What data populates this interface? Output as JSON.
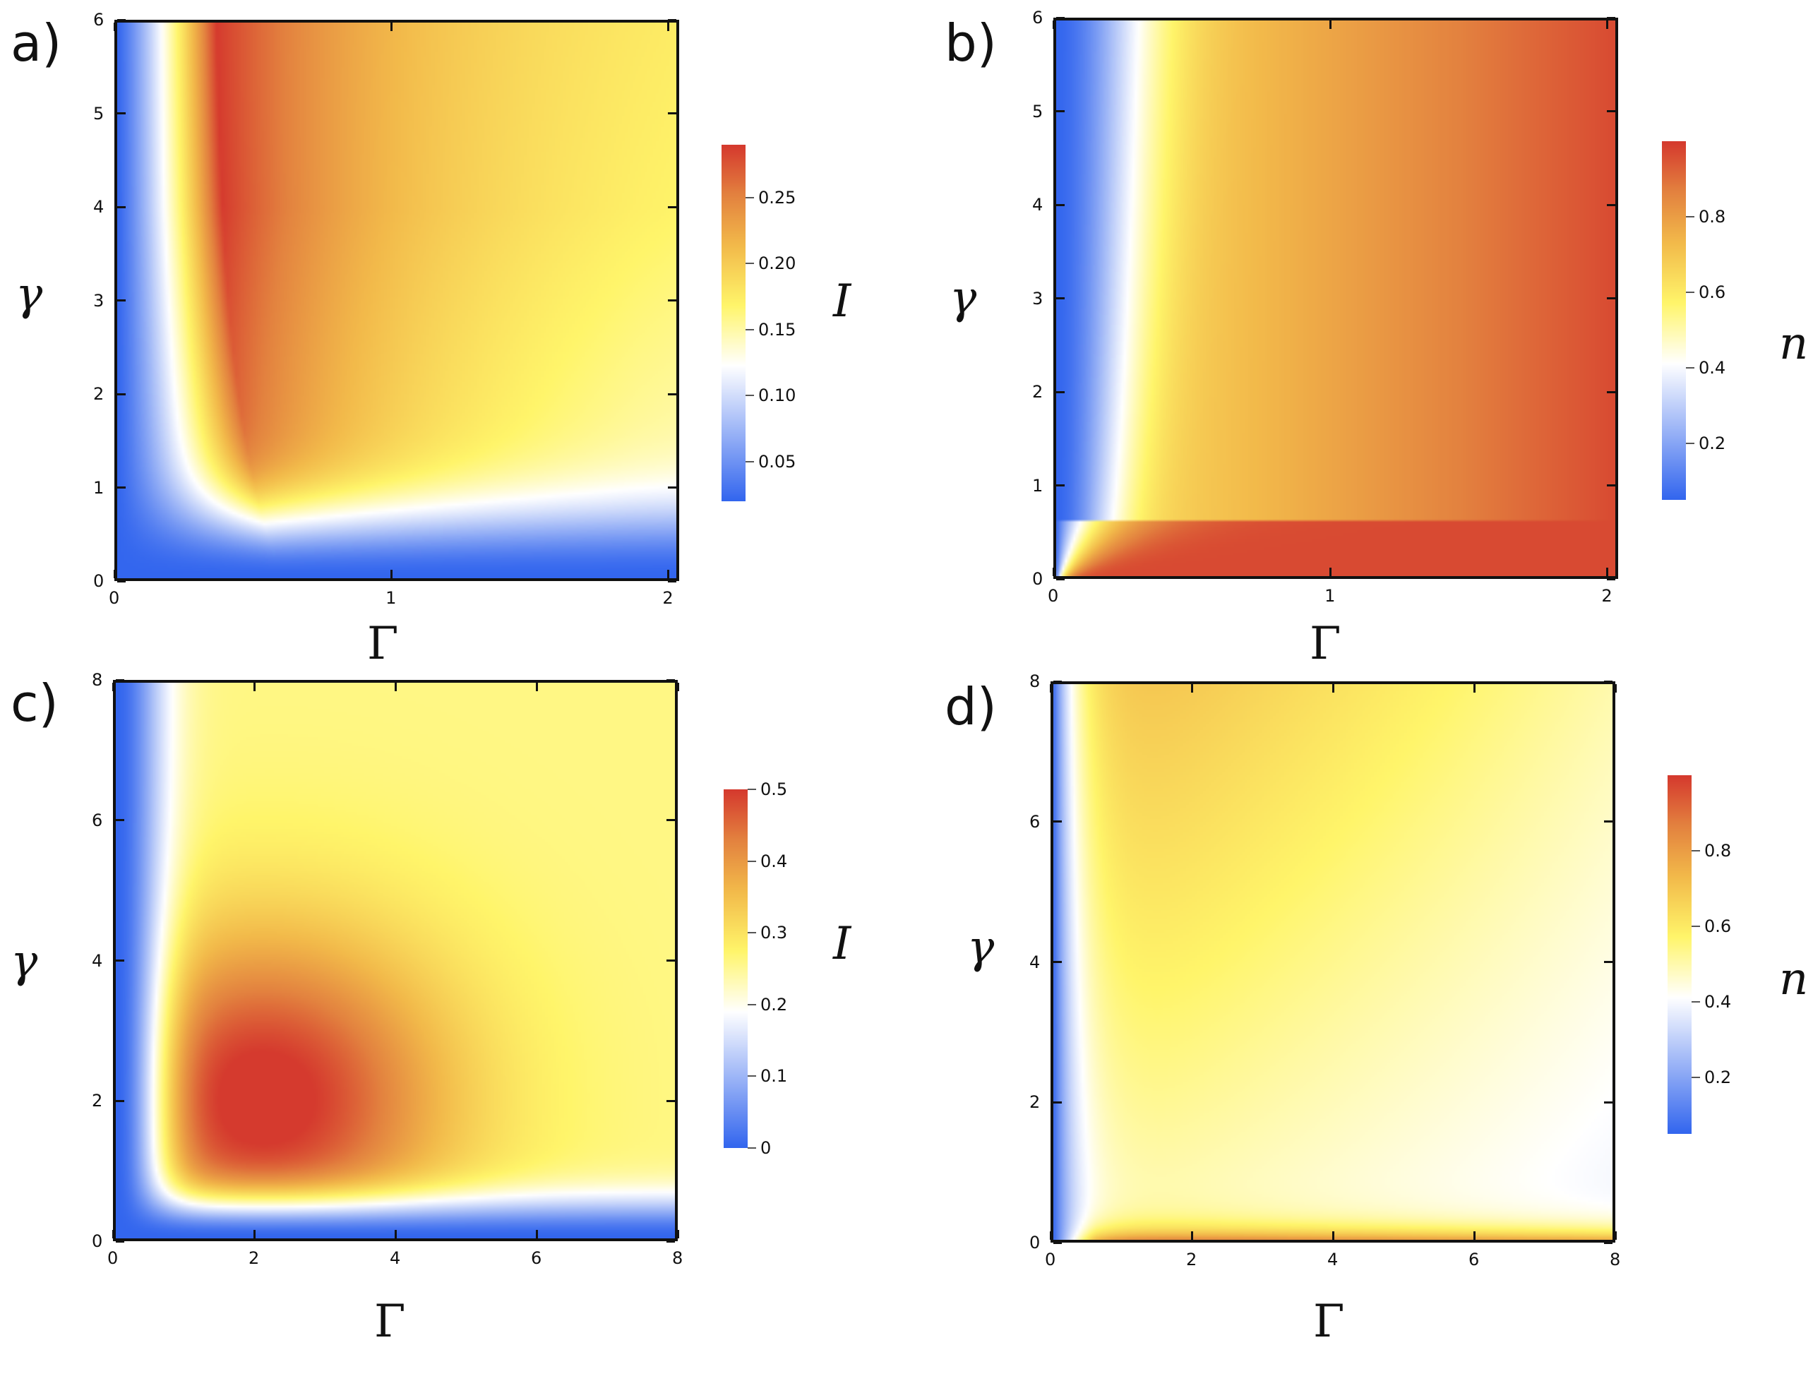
{
  "colors": {
    "scale": [
      "#3366ee",
      "#ffffff",
      "#fff56a",
      "#f2b94a",
      "#e3823f",
      "#d53a2e"
    ],
    "frame": "#111111"
  },
  "chart_data": [
    {
      "panel": "a)",
      "type": "heatmap",
      "xlabel": "Γ",
      "ylabel": "γ",
      "xlim": [
        0,
        2.04
      ],
      "ylim": [
        0,
        6
      ],
      "xticks": [
        "0",
        "1",
        "2"
      ],
      "xtick_values": [
        0,
        1,
        2
      ],
      "yticks": [
        "0",
        "1",
        "2",
        "3",
        "4",
        "5",
        "6"
      ],
      "ytick_values": [
        0,
        1,
        2,
        3,
        4,
        5,
        6
      ],
      "colorbar": {
        "label": "I",
        "range": [
          0.02,
          0.29
        ],
        "ticks": [
          "0.05",
          "0.10",
          "0.15",
          "0.20",
          "0.25"
        ],
        "tick_values": [
          0.05,
          0.1,
          0.15,
          0.2,
          0.25
        ]
      },
      "peak": {
        "x": 0.35,
        "y": 5.5,
        "value": 0.29
      },
      "values": "I(Γ,γ): ~0.02 along γ=0 and Γ=0 edges, rises to a ridge maximum ≈0.29 near Γ≈0.35, decreasing to ≈0.20 at large Γ"
    },
    {
      "panel": "b)",
      "type": "heatmap",
      "xlabel": "Γ",
      "ylabel": "γ",
      "xlim": [
        0,
        2.04
      ],
      "ylim": [
        0,
        6
      ],
      "xticks": [
        "0",
        "1",
        "2"
      ],
      "xtick_values": [
        0,
        1,
        2
      ],
      "yticks": [
        "0",
        "1",
        "2",
        "3",
        "4",
        "5",
        "6"
      ],
      "ytick_values": [
        0,
        1,
        2,
        3,
        4,
        5,
        6
      ],
      "colorbar": {
        "label": "n",
        "range": [
          0.05,
          1.0
        ],
        "ticks": [
          "0.2",
          "0.4",
          "0.6",
          "0.8"
        ],
        "tick_values": [
          0.2,
          0.4,
          0.6,
          0.8
        ]
      },
      "values": "n(Γ,γ): ≈0.05 at Γ=0, ≈0.6 around Γ≈0.3, increasing monotonically to ≈0.95 at Γ=2"
    },
    {
      "panel": "c)",
      "type": "heatmap",
      "xlabel": "Γ",
      "ylabel": "γ",
      "xlim": [
        0,
        8
      ],
      "ylim": [
        0,
        8
      ],
      "xticks": [
        "0",
        "2",
        "4",
        "6",
        "8"
      ],
      "xtick_values": [
        0,
        2,
        4,
        6,
        8
      ],
      "yticks": [
        "0",
        "2",
        "4",
        "6",
        "8"
      ],
      "ytick_values": [
        0,
        2,
        4,
        6,
        8
      ],
      "colorbar": {
        "label": "I",
        "range": [
          0,
          0.5
        ],
        "ticks": [
          "0",
          "0.1",
          "0.2",
          "0.3",
          "0.4",
          "0.5"
        ],
        "tick_values": [
          0,
          0.1,
          0.2,
          0.3,
          0.4,
          0.5
        ]
      },
      "peak": {
        "x": 2.1,
        "y": 2.0,
        "value": 0.5
      },
      "values": "I(Γ,γ): ≈0 on Γ=0 and γ=0 edges, maximum ≈0.5 at Γ≈2, γ≈2, decaying to ≈0.25 at Γ=γ=8"
    },
    {
      "panel": "d)",
      "type": "heatmap",
      "xlabel": "Γ",
      "ylabel": "γ",
      "xlim": [
        0,
        8
      ],
      "ylim": [
        0,
        8
      ],
      "xticks": [
        "0",
        "2",
        "4",
        "6",
        "8"
      ],
      "xtick_values": [
        0,
        2,
        4,
        6,
        8
      ],
      "yticks": [
        "0",
        "2",
        "4",
        "6",
        "8"
      ],
      "ytick_values": [
        0,
        2,
        4,
        6,
        8
      ],
      "colorbar": {
        "label": "n",
        "range": [
          0.05,
          1.0
        ],
        "ticks": [
          "0.2",
          "0.4",
          "0.6",
          "0.8"
        ],
        "tick_values": [
          0.2,
          0.4,
          0.6,
          0.8
        ]
      },
      "values": "n(Γ,γ): ≈0.05 at Γ=0, ≈0.9 near γ=0, ≈0.7 at top-left, ≈0.4 at lower right, ≈0.5 in the middle"
    }
  ]
}
